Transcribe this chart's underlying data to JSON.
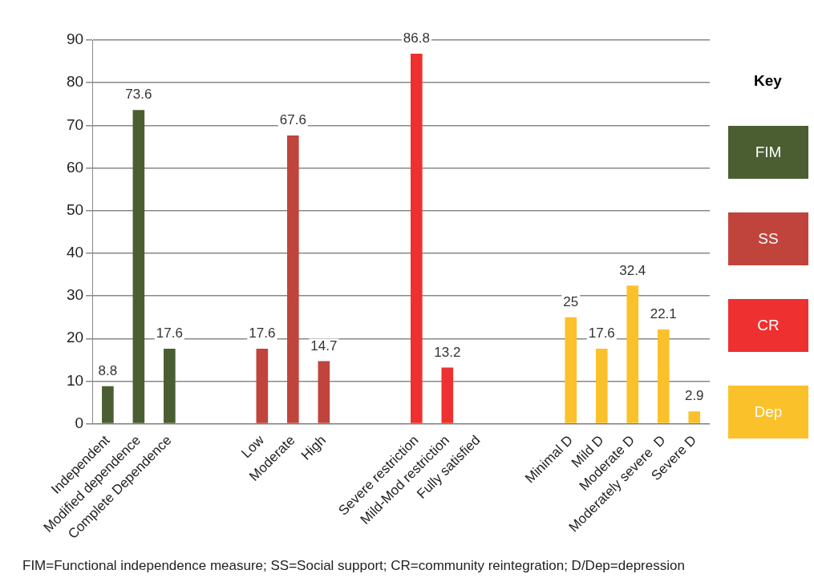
{
  "chart_data": {
    "type": "bar",
    "categories": [
      "Independent",
      "Modified dependence",
      "Complete Dependence",
      null,
      null,
      "Low",
      "Moderate",
      "High",
      null,
      null,
      "Severe restriction",
      "Mild-Mod restriction",
      "Fully satisfied",
      null,
      null,
      "Minimal D",
      "Mild D",
      "Moderate D",
      "Moderately severe  D",
      "Severe D"
    ],
    "series": [
      {
        "name": "FIM",
        "color": "#4a5e32",
        "values": [
          8.8,
          73.6,
          17.6,
          null,
          null,
          null,
          null,
          null,
          null,
          null,
          null,
          null,
          null,
          null,
          null,
          null,
          null,
          null,
          null,
          null
        ],
        "value_labels": [
          "8.8",
          "73.6",
          "17.6",
          null,
          null,
          null,
          null,
          null,
          null,
          null,
          null,
          null,
          null,
          null,
          null,
          null,
          null,
          null,
          null,
          null
        ]
      },
      {
        "name": "SS",
        "color": "#c0443c",
        "values": [
          null,
          null,
          null,
          null,
          null,
          17.6,
          67.6,
          14.7,
          null,
          null,
          null,
          null,
          null,
          null,
          null,
          null,
          null,
          null,
          null,
          null
        ],
        "value_labels": [
          null,
          null,
          null,
          null,
          null,
          "17.6",
          "67.6",
          "14.7",
          null,
          null,
          null,
          null,
          null,
          null,
          null,
          null,
          null,
          null,
          null,
          null
        ]
      },
      {
        "name": "CR",
        "color": "#ee3030",
        "values": [
          null,
          null,
          null,
          null,
          null,
          null,
          null,
          null,
          null,
          null,
          86.8,
          13.2,
          0,
          null,
          null,
          null,
          null,
          null,
          null,
          null
        ],
        "value_labels": [
          null,
          null,
          null,
          null,
          null,
          null,
          null,
          null,
          null,
          null,
          "86.8",
          "13.2",
          null,
          null,
          null,
          null,
          null,
          null,
          null,
          null
        ]
      },
      {
        "name": "Dep",
        "color": "#fbc12a",
        "values": [
          null,
          null,
          null,
          null,
          null,
          null,
          null,
          null,
          null,
          null,
          null,
          null,
          null,
          null,
          null,
          25,
          17.6,
          32.4,
          22.1,
          2.9
        ],
        "value_labels": [
          null,
          null,
          null,
          null,
          null,
          null,
          null,
          null,
          null,
          null,
          null,
          null,
          null,
          null,
          null,
          "25",
          "17.6",
          "32.4",
          "22.1",
          "2.9"
        ]
      }
    ],
    "ylim": [
      0,
      90
    ],
    "yticks": [
      0,
      10,
      20,
      30,
      40,
      50,
      60,
      70,
      80,
      90
    ],
    "grid": "y",
    "legend": "right",
    "legend_title": "Key",
    "annotations": [
      "FIM=Functional independence measure; SS=Social support; CR=community reintegration;  D/Dep=depression"
    ]
  }
}
